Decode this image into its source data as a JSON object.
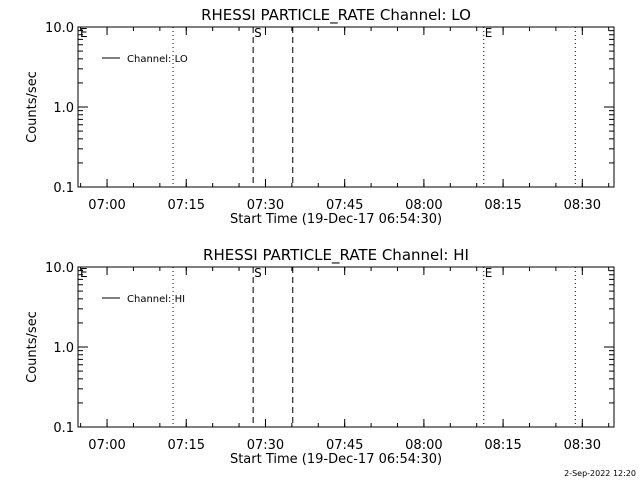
{
  "footer_text": "2-Sep-2022 12:20",
  "chart_data": [
    {
      "type": "line",
      "title": "RHESSI PARTICLE_RATE Channel: LO",
      "xlabel": "Start Time (19-Dec-17 06:54:30)",
      "ylabel": "Counts/sec",
      "yscale": "log",
      "ylim": [
        0.1,
        10.0
      ],
      "xlim": [
        "06:54:30",
        "08:36:00"
      ],
      "x_ticks": [
        "07:00",
        "07:15",
        "07:30",
        "07:45",
        "08:00",
        "08:15",
        "08:30"
      ],
      "y_ticks": [
        "0.1",
        "1.0",
        "10.0"
      ],
      "legend": {
        "location": "top-left",
        "entries": [
          "Channel: LO"
        ]
      },
      "series": [
        {
          "name": "Channel: LO",
          "values": []
        }
      ],
      "markers": [
        {
          "time": "07:12:30",
          "style": "dotted",
          "label": ""
        },
        {
          "time": "07:27:40",
          "style": "dashed",
          "label": "S"
        },
        {
          "time": "07:35:10",
          "style": "dashed",
          "label": ""
        },
        {
          "time": "08:11:20",
          "style": "dotted",
          "label": "E"
        },
        {
          "time": "08:28:40",
          "style": "dotted",
          "label": ""
        }
      ],
      "corner_label": "E",
      "grid": false
    },
    {
      "type": "line",
      "title": "RHESSI PARTICLE_RATE Channel: HI",
      "xlabel": "Start Time (19-Dec-17 06:54:30)",
      "ylabel": "Counts/sec",
      "yscale": "log",
      "ylim": [
        0.1,
        10.0
      ],
      "xlim": [
        "06:54:30",
        "08:36:00"
      ],
      "x_ticks": [
        "07:00",
        "07:15",
        "07:30",
        "07:45",
        "08:00",
        "08:15",
        "08:30"
      ],
      "y_ticks": [
        "0.1",
        "1.0",
        "10.0"
      ],
      "legend": {
        "location": "top-left",
        "entries": [
          "Channel: HI"
        ]
      },
      "series": [
        {
          "name": "Channel: HI",
          "values": []
        }
      ],
      "markers": [
        {
          "time": "07:12:30",
          "style": "dotted",
          "label": ""
        },
        {
          "time": "07:27:40",
          "style": "dashed",
          "label": "S"
        },
        {
          "time": "07:35:10",
          "style": "dashed",
          "label": ""
        },
        {
          "time": "08:11:20",
          "style": "dotted",
          "label": "E"
        },
        {
          "time": "08:28:40",
          "style": "dotted",
          "label": ""
        }
      ],
      "corner_label": "E",
      "grid": false
    }
  ]
}
